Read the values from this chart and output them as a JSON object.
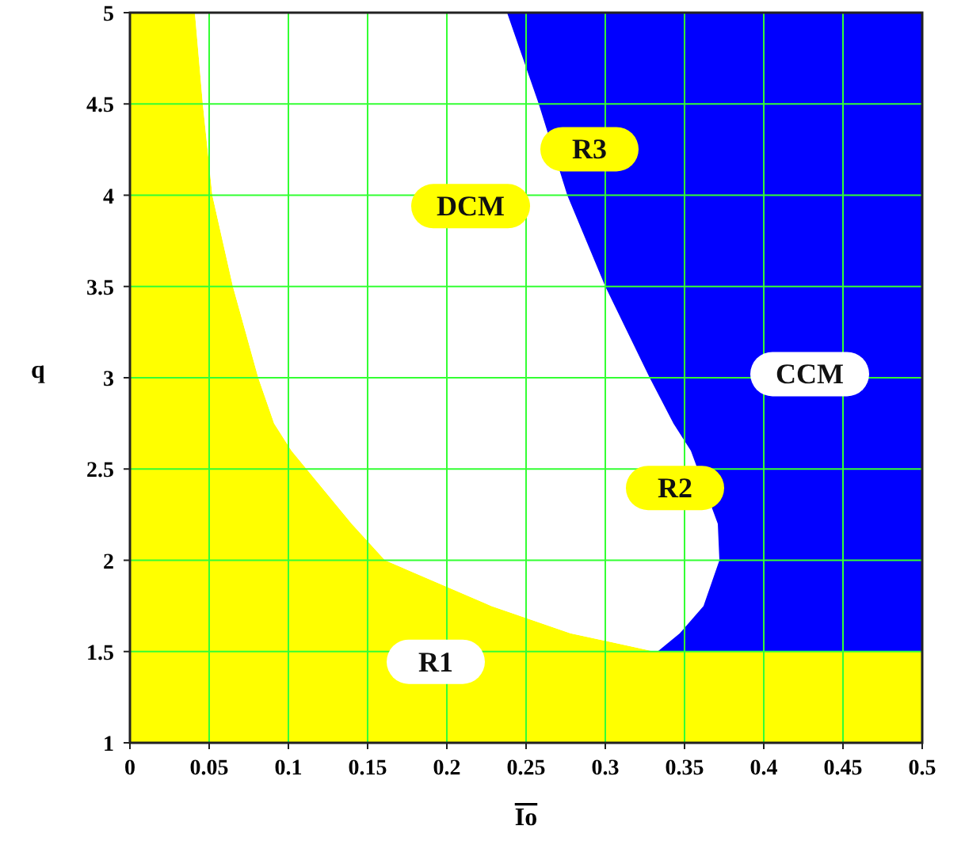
{
  "chart_data": {
    "type": "area",
    "orientation": "horizontal",
    "stacked": true,
    "xlabel": "Io",
    "ylabel": "q",
    "x": [
      1,
      1.5,
      1.5,
      1.6,
      1.75,
      2,
      2.2,
      2.6,
      2.75,
      3,
      3.5,
      4,
      4.5,
      5
    ],
    "series": [
      {
        "color": "#ffff00",
        "values": [
          0.5,
          0.5,
          0.331,
          0.278,
          0.228,
          0.161,
          0.14,
          0.102,
          0.091,
          0.081,
          0.065,
          0.052,
          0.046,
          0.041
        ]
      },
      {
        "color": "#ffffff",
        "values": [
          0,
          0,
          0.002,
          0.069,
          0.134,
          0.211,
          0.231,
          0.252,
          0.252,
          0.247,
          0.235,
          0.224,
          0.212,
          0.197
        ]
      },
      {
        "color": "#0000ff",
        "values": [
          0,
          0,
          0.167,
          0.153,
          0.138,
          0.128,
          0.129,
          0.146,
          0.157,
          0.172,
          0.2,
          0.224,
          0.242,
          0.262
        ]
      }
    ],
    "xlim": [
      0,
      0.5
    ],
    "xticks": [
      0,
      0.05,
      0.1,
      0.15,
      0.2,
      0.25,
      0.3,
      0.35,
      0.4,
      0.45,
      0.5
    ],
    "ylim": [
      1,
      5
    ],
    "yticks": [
      1,
      1.5,
      2,
      2.5,
      3,
      3.5,
      4,
      4.5,
      5
    ],
    "grid": true,
    "annotations": [
      "R1",
      "DCM",
      "R3",
      "CCM",
      "R2"
    ]
  }
}
